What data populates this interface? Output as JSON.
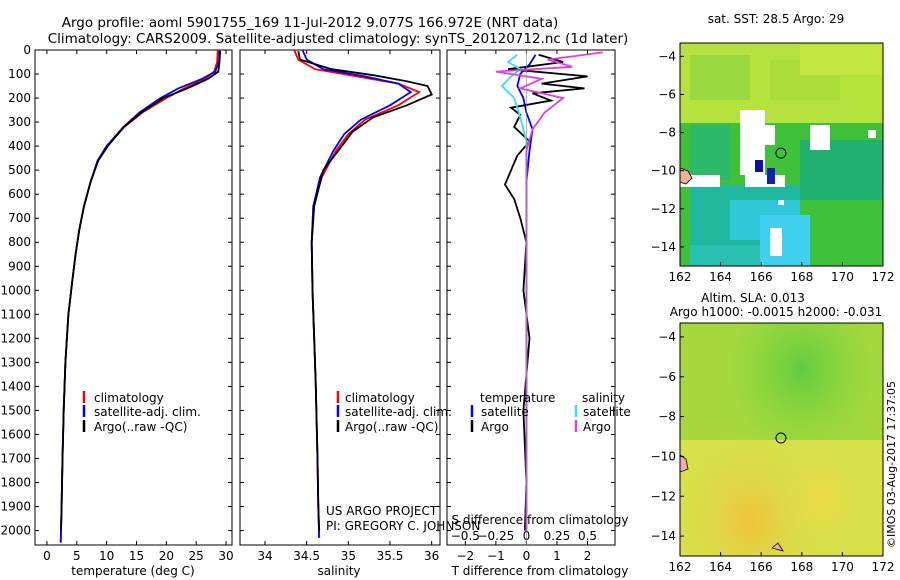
{
  "header": {
    "line1": "Argo profile: aoml 5901755_169 11-Jul-2012 9.077S 166.972E (NRT data)",
    "line2": "Climatology: CARS2009. Satellite-adjusted climatology: synTS_20120712.nc (1d later)"
  },
  "colors": {
    "climatology": "#ff0000",
    "satellite": "#0000ff",
    "argo": "#000000",
    "salinity_satellite": "#33e0f0",
    "salinity_argo": "#e040e0"
  },
  "chart_data": [
    {
      "type": "line",
      "id": "temperature",
      "xlabel": "temperature (deg C)",
      "ylabel": "",
      "xlim": [
        -2,
        31
      ],
      "ylim": [
        2060,
        0
      ],
      "xticks": [
        0,
        5,
        10,
        15,
        20,
        25,
        30
      ],
      "xtick_labels": [
        "0",
        "5",
        "10",
        "15",
        "20",
        "25",
        "30"
      ],
      "yticks": [
        0,
        100,
        200,
        300,
        400,
        500,
        600,
        700,
        800,
        900,
        1000,
        1100,
        1200,
        1300,
        1400,
        1500,
        1600,
        1700,
        1800,
        1900,
        2000
      ],
      "ytick_labels": [
        "0",
        "100",
        "200",
        "300",
        "400",
        "500",
        "600",
        "700",
        "800",
        "900",
        "1000",
        "1100",
        "1200",
        "1300",
        "1400",
        "1500",
        "1600",
        "1700",
        "1800",
        "1900",
        "2000"
      ],
      "legend": [
        "climatology",
        "satellite-adj. clim.",
        "Argo(..raw -QC)"
      ],
      "series": [
        {
          "name": "climatology",
          "color": "#ff0000",
          "x": [
            28.6,
            28.5,
            28,
            26.5,
            23,
            20,
            16,
            13,
            10,
            8.5,
            7.3,
            6.2,
            5.4,
            4.8,
            4.3,
            3.6,
            3.1,
            2.8,
            2.6,
            2.45,
            2.35,
            2.3
          ],
          "y": [
            0,
            50,
            90,
            120,
            160,
            200,
            260,
            320,
            400,
            460,
            550,
            650,
            750,
            850,
            950,
            1100,
            1300,
            1500,
            1700,
            1900,
            2000,
            2050
          ]
        },
        {
          "name": "satellite-adj. clim.",
          "color": "#0000ff",
          "x": [
            28.9,
            28.8,
            28.2,
            26,
            22,
            19,
            15.5,
            12.8,
            10,
            8.5,
            7.3,
            6.2,
            5.4,
            4.8,
            4.3,
            3.6,
            3.1,
            2.8,
            2.6,
            2.45,
            2.35,
            2.3
          ],
          "y": [
            0,
            50,
            90,
            120,
            160,
            200,
            260,
            320,
            400,
            460,
            550,
            650,
            750,
            850,
            950,
            1100,
            1300,
            1500,
            1700,
            1900,
            2000,
            2050
          ]
        },
        {
          "name": "Argo(..raw -QC)",
          "color": "#000000",
          "x": [
            29,
            28.9,
            28.7,
            27,
            23.5,
            19.5,
            15.8,
            12.9,
            10.2,
            8.6,
            7.3,
            6.2,
            5.4,
            4.8,
            4.3,
            3.6,
            3.1,
            2.8,
            2.6,
            2.45,
            2.35
          ],
          "y": [
            5,
            50,
            90,
            120,
            160,
            200,
            260,
            320,
            400,
            460,
            550,
            650,
            750,
            850,
            950,
            1100,
            1300,
            1500,
            1700,
            1900,
            2000
          ]
        }
      ]
    },
    {
      "type": "line",
      "id": "salinity",
      "xlabel": "salinity",
      "xlim": [
        33.7,
        36.1
      ],
      "ylim": [
        2060,
        0
      ],
      "xticks": [
        34,
        34.5,
        35,
        35.5,
        36
      ],
      "xtick_labels": [
        "34",
        "34.5",
        "35",
        "35.5",
        "36"
      ],
      "legend": [
        "climatology",
        "satellite-adj. clim.",
        "Argo(..raw -QC)"
      ],
      "annotation": [
        "US ARGO PROJECT",
        "PI: GREGORY C. JOHNSON"
      ],
      "series": [
        {
          "name": "climatology",
          "color": "#ff0000",
          "x": [
            34.35,
            34.4,
            34.6,
            35.1,
            35.6,
            35.85,
            35.6,
            35.2,
            35,
            34.85,
            34.68,
            34.58,
            34.56,
            34.57,
            34.59,
            34.61,
            34.63,
            34.64,
            34.65
          ],
          "y": [
            0,
            40,
            80,
            110,
            140,
            175,
            230,
            290,
            350,
            420,
            530,
            650,
            800,
            1000,
            1200,
            1400,
            1700,
            1900,
            2030
          ]
        },
        {
          "name": "satellite-adj. clim.",
          "color": "#0000ff",
          "x": [
            34.45,
            34.5,
            34.7,
            35.2,
            35.6,
            35.75,
            35.5,
            35.15,
            34.95,
            34.82,
            34.66,
            34.58,
            34.56,
            34.57,
            34.59,
            34.61,
            34.63,
            34.64,
            34.65
          ],
          "y": [
            0,
            40,
            80,
            110,
            140,
            175,
            230,
            290,
            350,
            420,
            530,
            650,
            800,
            1000,
            1200,
            1400,
            1700,
            1900,
            2030
          ]
        },
        {
          "name": "Argo(..raw -QC)",
          "color": "#000000",
          "x": [
            34.4,
            34.42,
            34.8,
            35.3,
            35.7,
            35.95,
            36.0,
            35.7,
            35.3,
            35.05,
            34.9,
            34.7,
            34.59,
            34.56,
            34.57,
            34.59,
            34.61,
            34.63,
            34.64,
            34.65
          ],
          "y": [
            5,
            40,
            80,
            105,
            130,
            150,
            185,
            230,
            280,
            340,
            410,
            500,
            650,
            800,
            1000,
            1200,
            1400,
            1700,
            1900,
            2000
          ]
        }
      ]
    },
    {
      "type": "line",
      "id": "difference",
      "xlabel": "T difference from climatology",
      "xlabel_top": "S difference from climatology",
      "xlim": [
        -2.6,
        2.9
      ],
      "ylim": [
        2060,
        0
      ],
      "xticks": [
        -2,
        -1,
        0,
        1,
        2
      ],
      "xtick_labels": [
        "−2",
        "−1",
        "0",
        "1",
        "2"
      ],
      "s_xticks": [
        -2,
        -1,
        0,
        1,
        2
      ],
      "s_xtick_labels": [
        "−0.5",
        "−0.25",
        "0",
        "0.25",
        "0.5"
      ],
      "legend_titles": [
        "temperature",
        "salinity"
      ],
      "legend": [
        "satellite",
        "Argo",
        "satellite",
        "Argo"
      ],
      "series": [
        {
          "name": "temperature satellite",
          "color": "#0000ff",
          "x": [
            0.3,
            0.1,
            -0.2,
            -0.3,
            -0.1,
            0,
            0.2,
            0.1,
            0,
            0,
            0
          ],
          "y": [
            20,
            60,
            100,
            150,
            200,
            260,
            330,
            420,
            550,
            800,
            2000
          ]
        },
        {
          "name": "temperature Argo",
          "color": "#000000",
          "x": [
            0.4,
            1.2,
            -0.6,
            2.0,
            0.5,
            1.9,
            0.2,
            0.8,
            -0.5,
            -0.2,
            -0.4,
            0.1,
            -0.3,
            -0.5,
            -0.7,
            -0.4,
            -0.2,
            0,
            -0.1,
            0.1,
            -0.1,
            0,
            -0.05
          ],
          "y": [
            20,
            50,
            80,
            110,
            140,
            160,
            180,
            210,
            240,
            270,
            320,
            380,
            440,
            500,
            560,
            620,
            700,
            800,
            1000,
            1200,
            1500,
            1800,
            2000
          ]
        },
        {
          "name": "salinity satellite",
          "color": "#33e0f0",
          "x": [
            -0.3,
            -0.6,
            -0.2,
            -0.5,
            -0.8,
            -0.4,
            -0.2,
            0,
            0,
            0,
            0
          ],
          "y": [
            20,
            50,
            80,
            110,
            150,
            200,
            280,
            380,
            550,
            800,
            2000
          ]
        },
        {
          "name": "salinity Argo",
          "color": "#e040e0",
          "x": [
            2.5,
            0.7,
            1.5,
            -1.0,
            0.5,
            -0.2,
            1.2,
            0.6,
            0.2,
            0,
            0,
            0
          ],
          "y": [
            10,
            40,
            70,
            90,
            120,
            160,
            200,
            260,
            330,
            420,
            700,
            2000
          ]
        }
      ]
    },
    {
      "type": "heatmap",
      "id": "sst_map",
      "title": "sat. SST: 28.5 Argo: 29",
      "xlim": [
        162,
        172
      ],
      "ylim": [
        -15,
        -3.3
      ],
      "xticks": [
        162,
        164,
        166,
        168,
        170,
        172
      ],
      "xtick_labels": [
        "162",
        "164",
        "166",
        "168",
        "170",
        "172"
      ],
      "yticks": [
        -4,
        -6,
        -8,
        -10,
        -12,
        -14
      ],
      "ytick_labels": [
        "−4",
        "−6",
        "−8",
        "−10",
        "−12",
        "−14"
      ],
      "marker": {
        "lon": 166.972,
        "lat": -9.077
      }
    },
    {
      "type": "heatmap",
      "id": "sla_map",
      "title": "Altim. SLA: 0.013",
      "subtitle": "Argo h1000: -0.0015 h2000: -0.031",
      "xlim": [
        162,
        172
      ],
      "ylim": [
        -15,
        -3.3
      ],
      "xticks": [
        162,
        164,
        166,
        168,
        170,
        172
      ],
      "xtick_labels": [
        "162",
        "164",
        "166",
        "168",
        "170",
        "172"
      ],
      "yticks": [
        -4,
        -6,
        -8,
        -10,
        -12,
        -14
      ],
      "ytick_labels": [
        "−4",
        "−6",
        "−8",
        "−10",
        "−12",
        "−14"
      ],
      "marker": {
        "lon": 166.972,
        "lat": -9.077
      }
    }
  ],
  "watermark": "©IMOS 03-Aug-2017 17:37:05"
}
